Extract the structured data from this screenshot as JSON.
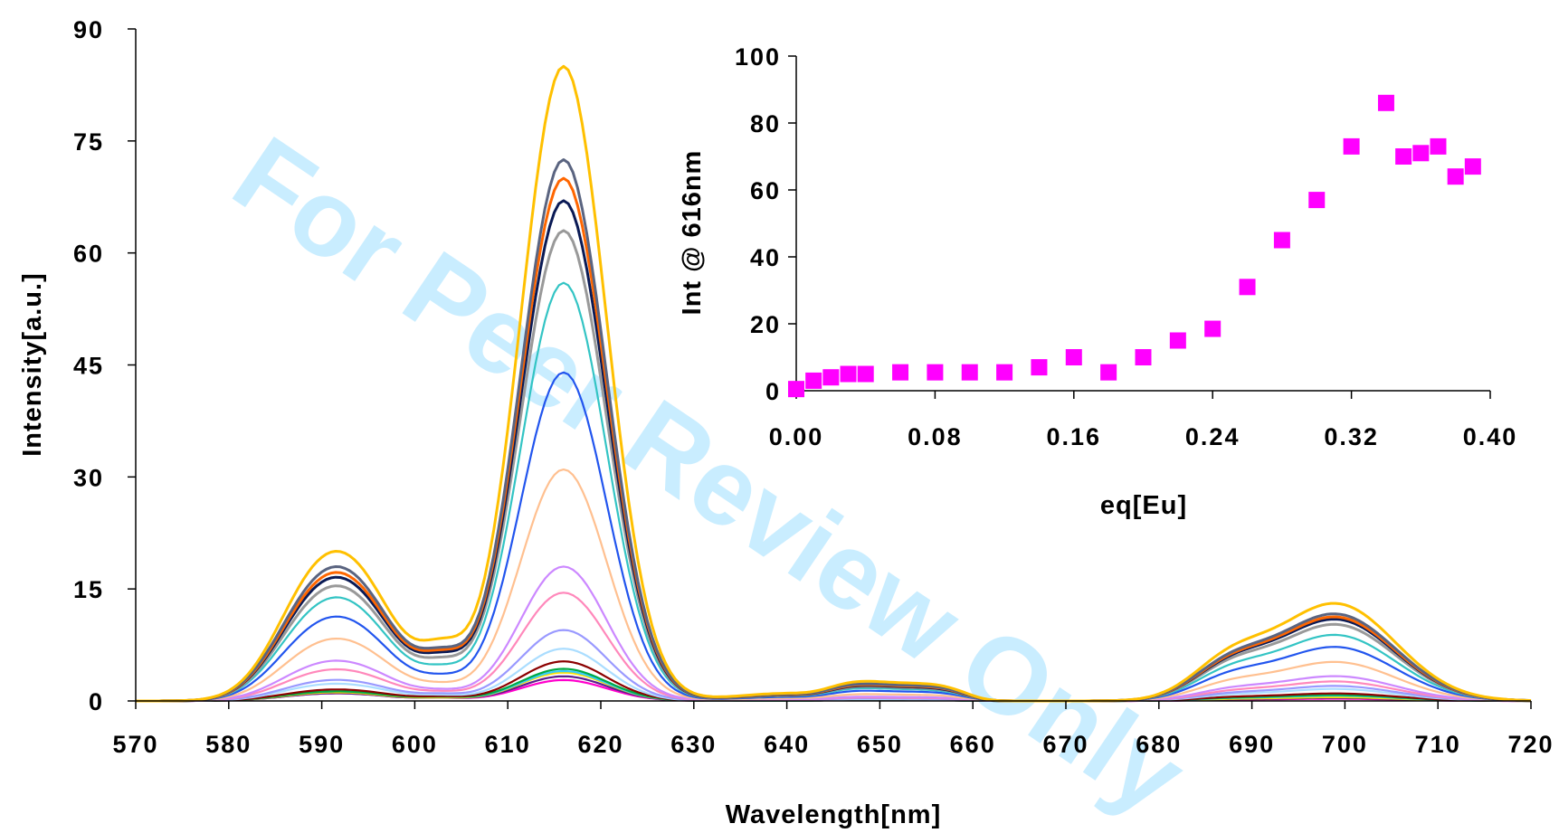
{
  "watermark": "For Peer Review Only",
  "chart_data": [
    {
      "type": "line",
      "xlabel": "Wavelength[nm]",
      "ylabel": "Intensity[a.u.]",
      "xlim": [
        570,
        720
      ],
      "ylim": [
        0,
        90
      ],
      "xticks": [
        570,
        580,
        590,
        600,
        610,
        620,
        630,
        640,
        650,
        660,
        670,
        680,
        690,
        700,
        710,
        720
      ],
      "yticks": [
        0,
        15,
        30,
        45,
        60,
        75,
        90
      ],
      "grid": false,
      "legend": "none",
      "peak_positions": [
        593,
        603,
        616,
        652,
        699
      ],
      "series": [
        {
          "color": "#ff00cc",
          "peaks": [
            0.8,
            0.3,
            2.8,
            0.1,
            0.3
          ]
        },
        {
          "color": "#5a1e8c",
          "peaks": [
            0.8,
            0.3,
            3.3,
            0.1,
            0.4
          ]
        },
        {
          "color": "#ffe000",
          "peaks": [
            0.9,
            0.3,
            3.8,
            0.1,
            0.5
          ]
        },
        {
          "color": "#33ccff",
          "peaks": [
            1.0,
            0.4,
            4.0,
            0.1,
            0.7
          ]
        },
        {
          "color": "#00aa44",
          "peaks": [
            1.0,
            0.4,
            4.3,
            0.1,
            0.8
          ]
        },
        {
          "color": "#8b0000",
          "peaks": [
            1.2,
            0.4,
            5.3,
            0.2,
            1.0
          ]
        },
        {
          "color": "#aaddff",
          "peaks": [
            1.8,
            0.5,
            7.0,
            0.2,
            1.6
          ]
        },
        {
          "color": "#9999ff",
          "peaks": [
            2.2,
            0.6,
            9.5,
            0.3,
            2.0
          ]
        },
        {
          "color": "#ff88bb",
          "peaks": [
            3.3,
            0.7,
            14.5,
            0.4,
            2.6
          ]
        },
        {
          "color": "#cc88ff",
          "peaks": [
            4.2,
            0.8,
            18.0,
            0.5,
            3.3
          ]
        },
        {
          "color": "#ffc090",
          "peaks": [
            6.5,
            1.2,
            31.0,
            0.8,
            5.2
          ]
        },
        {
          "color": "#2255ee",
          "peaks": [
            8.8,
            1.8,
            44.0,
            1.2,
            7.2
          ]
        },
        {
          "color": "#33c4c4",
          "peaks": [
            10.8,
            2.6,
            56.0,
            1.5,
            8.8
          ]
        },
        {
          "color": "#999999",
          "peaks": [
            12.0,
            3.3,
            63.0,
            1.7,
            10.2
          ]
        },
        {
          "color": "#0a1a55",
          "peaks": [
            12.9,
            3.8,
            67.0,
            1.8,
            10.9
          ]
        },
        {
          "color": "#ff6600",
          "peaks": [
            13.4,
            4.0,
            70.0,
            1.9,
            11.2
          ]
        },
        {
          "color": "#5a6480",
          "peaks": [
            14.0,
            4.2,
            72.5,
            2.0,
            11.6
          ]
        },
        {
          "color": "#ffc000",
          "peaks": [
            15.6,
            5.0,
            85.0,
            2.3,
            13.0
          ]
        }
      ]
    },
    {
      "type": "scatter",
      "xlabel": "eq[Eu]",
      "ylabel": "Int @ 616nm",
      "xlim": [
        0,
        0.4
      ],
      "ylim": [
        0,
        100
      ],
      "xticks": [
        "0.00",
        "0.08",
        "0.16",
        "0.24",
        "0.32",
        "0.40"
      ],
      "yticks": [
        0,
        20,
        40,
        60,
        80,
        100
      ],
      "marker_color": "#ff00ff",
      "x": [
        0.0,
        0.01,
        0.02,
        0.03,
        0.04,
        0.06,
        0.08,
        0.1,
        0.12,
        0.14,
        0.16,
        0.18,
        0.2,
        0.22,
        0.24,
        0.26,
        0.28,
        0.3,
        0.32,
        0.34,
        0.35,
        0.36,
        0.37,
        0.38,
        0.39
      ],
      "y": [
        0.5,
        3,
        4,
        5,
        5,
        5.5,
        5.5,
        5.5,
        5.5,
        7,
        10,
        5.5,
        10,
        15,
        18.5,
        31,
        45,
        57,
        73,
        86,
        70,
        71,
        73,
        64,
        67
      ]
    }
  ]
}
